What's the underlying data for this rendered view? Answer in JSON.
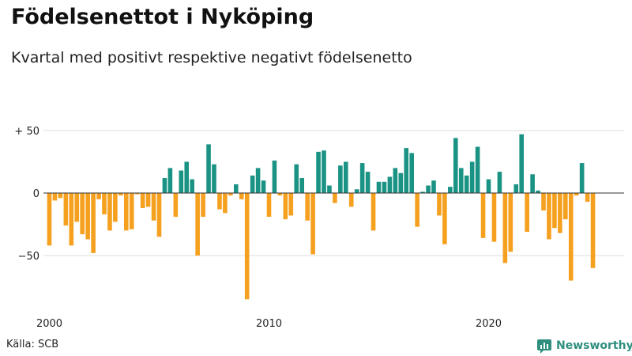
{
  "title": "Födelsenettot i Nyköping",
  "subtitle": "Kvartal med positivt respektive negativt födelsenetto",
  "source": "Källa: SCB",
  "brand": "Newsworthy",
  "colors": {
    "positive": "#1a9384",
    "negative": "#f5a01e",
    "grid": "#dddddd",
    "zero": "#333333",
    "brand": "#2f8f7e"
  },
  "chart_data": {
    "type": "bar",
    "x_start": "2000 Q1",
    "quarters_per_year": 4,
    "values": [
      -42,
      -6,
      -4,
      -26,
      -42,
      -23,
      -33,
      -37,
      -48,
      -5,
      -17,
      -30,
      -23,
      -2,
      -30,
      -29,
      -1,
      -12,
      -11,
      -22,
      -35,
      12,
      20,
      -19,
      18,
      25,
      11,
      -50,
      -19,
      39,
      23,
      -13,
      -16,
      -2,
      7,
      -5,
      -85,
      14,
      20,
      10,
      -19,
      26,
      -2,
      -21,
      -18,
      23,
      12,
      -22,
      -49,
      33,
      34,
      6,
      -8,
      22,
      25,
      -11,
      3,
      24,
      17,
      -30,
      9,
      9,
      13,
      20,
      16,
      36,
      32,
      -27,
      1,
      6,
      10,
      -18,
      -41,
      5,
      44,
      20,
      14,
      25,
      37,
      -36,
      11,
      -39,
      17,
      -56,
      -47,
      7,
      47,
      -31,
      15,
      2,
      -14,
      -37,
      -28,
      -32,
      -21,
      -70,
      -2,
      24,
      -7,
      -60
    ],
    "ylim": [
      -85,
      50
    ],
    "yticks": [
      -50,
      0,
      50
    ],
    "ytick_labels": [
      "−50",
      "0",
      "+ 50"
    ],
    "xticks": [
      "2000",
      "2010",
      "2020"
    ],
    "grid": true
  }
}
